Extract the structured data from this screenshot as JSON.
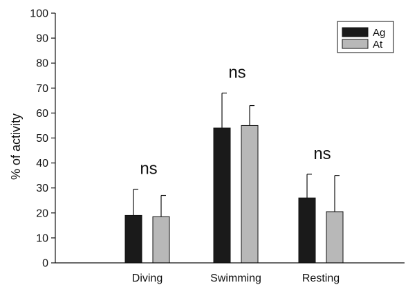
{
  "chart_data": {
    "type": "bar",
    "categories": [
      "Diving",
      "Swimming",
      "Resting"
    ],
    "series": [
      {
        "name": "Ag",
        "color": "#1a1a1a",
        "values": [
          19,
          54,
          26
        ],
        "errors": [
          10.5,
          14,
          9.5
        ]
      },
      {
        "name": "At",
        "color": "#b8b8b8",
        "values": [
          18.5,
          55,
          20.5
        ],
        "errors": [
          8.5,
          8,
          14.5
        ]
      }
    ],
    "ylabel": "% of activity",
    "xlabel": "",
    "ylim": [
      0,
      100
    ],
    "yticks": [
      0,
      10,
      20,
      30,
      40,
      50,
      60,
      70,
      80,
      90,
      100
    ],
    "annotations": [
      "ns",
      "ns",
      "ns"
    ],
    "legend_position": "top-right",
    "grid": false
  }
}
